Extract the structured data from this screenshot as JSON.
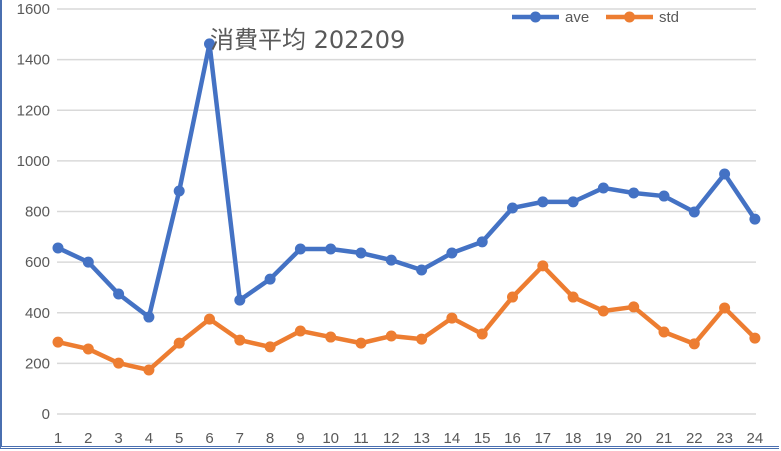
{
  "chart_data": {
    "type": "line",
    "title": "消費平均 202209",
    "xlabel": "",
    "ylabel": "",
    "categories": [
      "1",
      "2",
      "3",
      "4",
      "5",
      "6",
      "7",
      "8",
      "9",
      "10",
      "11",
      "12",
      "13",
      "14",
      "15",
      "16",
      "17",
      "18",
      "19",
      "20",
      "21",
      "22",
      "23",
      "24"
    ],
    "series": [
      {
        "name": "ave",
        "color": "#4472C4",
        "values": [
          656,
          600,
          474,
          383,
          881,
          1462,
          450,
          533,
          652,
          652,
          636,
          608,
          569,
          636,
          680,
          814,
          838,
          838,
          893,
          873,
          861,
          798,
          948,
          770
        ]
      },
      {
        "name": "std",
        "color": "#ED7D31",
        "values": [
          284,
          257,
          201,
          174,
          280,
          375,
          292,
          265,
          328,
          304,
          280,
          308,
          296,
          379,
          316,
          462,
          585,
          462,
          407,
          423,
          324,
          277,
          419,
          300
        ]
      }
    ],
    "ylim": [
      0,
      1600
    ],
    "yticks": [
      0,
      200,
      400,
      600,
      800,
      1000,
      1200,
      1400,
      1600
    ],
    "grid": true,
    "legend_position": "top-right"
  }
}
